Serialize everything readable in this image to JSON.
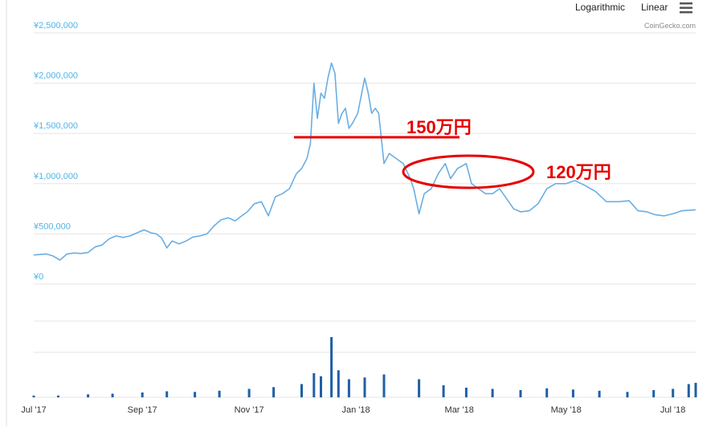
{
  "toolbar": {
    "logarithmic_label": "Logarithmic",
    "linear_label": "Linear",
    "menu_icon": "hamburger-menu-icon"
  },
  "credit": "CoinGecko.com",
  "annotations": {
    "high_label": "150万円",
    "range_label": "120万円",
    "line_color": "#e60000"
  },
  "colors": {
    "price_line": "#6aaee3",
    "volume_bar": "#1f5fa6",
    "grid": "#e6e6e6",
    "axis_label": "#4fb3e6"
  },
  "chart_data": [
    {
      "type": "line",
      "title": "",
      "xlabel": "",
      "ylabel": "",
      "ylim": [
        0,
        2500000
      ],
      "yticks": [
        {
          "value": 0,
          "label": "¥0"
        },
        {
          "value": 500000,
          "label": "¥500,000"
        },
        {
          "value": 1000000,
          "label": "¥1,000,000"
        },
        {
          "value": 1500000,
          "label": "¥1,500,000"
        },
        {
          "value": 2000000,
          "label": "¥2,000,000"
        },
        {
          "value": 2500000,
          "label": "¥2,500,000"
        }
      ],
      "xlim": [
        "2017-07-01",
        "2018-07-14"
      ],
      "xticks": [
        {
          "date": "2017-07-01",
          "label": "Jul '17"
        },
        {
          "date": "2017-09-01",
          "label": "Sep '17"
        },
        {
          "date": "2017-11-01",
          "label": "Nov '17"
        },
        {
          "date": "2018-01-01",
          "label": "Jan '18"
        },
        {
          "date": "2018-03-01",
          "label": "Mar '18"
        },
        {
          "date": "2018-05-01",
          "label": "May '18"
        },
        {
          "date": "2018-07-01",
          "label": "Jul '18"
        }
      ],
      "grid": true,
      "series": [
        {
          "points": [
            [
              "2017-07-01",
              290000
            ],
            [
              "2017-07-08",
              300000
            ],
            [
              "2017-07-12",
              280000
            ],
            [
              "2017-07-16",
              240000
            ],
            [
              "2017-07-20",
              300000
            ],
            [
              "2017-07-24",
              310000
            ],
            [
              "2017-07-28",
              305000
            ],
            [
              "2017-08-01",
              315000
            ],
            [
              "2017-08-05",
              370000
            ],
            [
              "2017-08-09",
              390000
            ],
            [
              "2017-08-13",
              450000
            ],
            [
              "2017-08-17",
              480000
            ],
            [
              "2017-08-21",
              465000
            ],
            [
              "2017-08-25",
              480000
            ],
            [
              "2017-08-29",
              510000
            ],
            [
              "2017-09-02",
              540000
            ],
            [
              "2017-09-06",
              510000
            ],
            [
              "2017-09-09",
              500000
            ],
            [
              "2017-09-12",
              460000
            ],
            [
              "2017-09-15",
              360000
            ],
            [
              "2017-09-18",
              430000
            ],
            [
              "2017-09-22",
              400000
            ],
            [
              "2017-09-26",
              430000
            ],
            [
              "2017-09-30",
              470000
            ],
            [
              "2017-10-04",
              480000
            ],
            [
              "2017-10-08",
              500000
            ],
            [
              "2017-10-12",
              580000
            ],
            [
              "2017-10-16",
              640000
            ],
            [
              "2017-10-20",
              660000
            ],
            [
              "2017-10-24",
              630000
            ],
            [
              "2017-10-27",
              670000
            ],
            [
              "2017-10-31",
              720000
            ],
            [
              "2017-11-04",
              800000
            ],
            [
              "2017-11-08",
              820000
            ],
            [
              "2017-11-12",
              680000
            ],
            [
              "2017-11-16",
              870000
            ],
            [
              "2017-11-20",
              900000
            ],
            [
              "2017-11-24",
              950000
            ],
            [
              "2017-11-28",
              1100000
            ],
            [
              "2017-12-01",
              1150000
            ],
            [
              "2017-12-04",
              1250000
            ],
            [
              "2017-12-06",
              1400000
            ],
            [
              "2017-12-08",
              2000000
            ],
            [
              "2017-12-10",
              1650000
            ],
            [
              "2017-12-12",
              1900000
            ],
            [
              "2017-12-14",
              1850000
            ],
            [
              "2017-12-16",
              2050000
            ],
            [
              "2017-12-18",
              2200000
            ],
            [
              "2017-12-20",
              2100000
            ],
            [
              "2017-12-22",
              1600000
            ],
            [
              "2017-12-24",
              1700000
            ],
            [
              "2017-12-26",
              1750000
            ],
            [
              "2017-12-28",
              1550000
            ],
            [
              "2017-12-30",
              1600000
            ],
            [
              "2018-01-02",
              1700000
            ],
            [
              "2018-01-06",
              2050000
            ],
            [
              "2018-01-08",
              1900000
            ],
            [
              "2018-01-10",
              1700000
            ],
            [
              "2018-01-12",
              1750000
            ],
            [
              "2018-01-14",
              1700000
            ],
            [
              "2018-01-17",
              1200000
            ],
            [
              "2018-01-20",
              1300000
            ],
            [
              "2018-01-24",
              1250000
            ],
            [
              "2018-01-28",
              1200000
            ],
            [
              "2018-02-01",
              1050000
            ],
            [
              "2018-02-03",
              950000
            ],
            [
              "2018-02-06",
              700000
            ],
            [
              "2018-02-09",
              900000
            ],
            [
              "2018-02-13",
              950000
            ],
            [
              "2018-02-17",
              1100000
            ],
            [
              "2018-02-21",
              1200000
            ],
            [
              "2018-02-24",
              1050000
            ],
            [
              "2018-02-28",
              1150000
            ],
            [
              "2018-03-05",
              1200000
            ],
            [
              "2018-03-08",
              1000000
            ],
            [
              "2018-03-12",
              950000
            ],
            [
              "2018-03-16",
              900000
            ],
            [
              "2018-03-20",
              900000
            ],
            [
              "2018-03-24",
              950000
            ],
            [
              "2018-03-28",
              850000
            ],
            [
              "2018-04-01",
              750000
            ],
            [
              "2018-04-05",
              720000
            ],
            [
              "2018-04-10",
              730000
            ],
            [
              "2018-04-15",
              800000
            ],
            [
              "2018-04-20",
              950000
            ],
            [
              "2018-04-25",
              1000000
            ],
            [
              "2018-05-01",
              1000000
            ],
            [
              "2018-05-06",
              1030000
            ],
            [
              "2018-05-12",
              980000
            ],
            [
              "2018-05-18",
              920000
            ],
            [
              "2018-05-24",
              820000
            ],
            [
              "2018-05-31",
              820000
            ],
            [
              "2018-06-06",
              830000
            ],
            [
              "2018-06-11",
              730000
            ],
            [
              "2018-06-16",
              720000
            ],
            [
              "2018-06-21",
              690000
            ],
            [
              "2018-06-26",
              680000
            ],
            [
              "2018-07-01",
              700000
            ],
            [
              "2018-07-06",
              730000
            ],
            [
              "2018-07-14",
              740000
            ]
          ]
        }
      ]
    },
    {
      "type": "bar",
      "title": "",
      "xlabel": "",
      "ylabel": "",
      "ylim": [
        0,
        100
      ],
      "note_units": "relative daily volume",
      "points": [
        [
          "2017-07-01",
          3
        ],
        [
          "2017-07-15",
          3
        ],
        [
          "2017-08-01",
          5
        ],
        [
          "2017-08-15",
          6
        ],
        [
          "2017-09-01",
          8
        ],
        [
          "2017-09-15",
          10
        ],
        [
          "2017-10-01",
          9
        ],
        [
          "2017-10-15",
          11
        ],
        [
          "2017-11-01",
          14
        ],
        [
          "2017-11-15",
          17
        ],
        [
          "2017-12-01",
          22
        ],
        [
          "2017-12-08",
          40
        ],
        [
          "2017-12-12",
          35
        ],
        [
          "2017-12-18",
          100
        ],
        [
          "2017-12-22",
          45
        ],
        [
          "2017-12-28",
          30
        ],
        [
          "2018-01-06",
          33
        ],
        [
          "2018-01-17",
          38
        ],
        [
          "2018-02-06",
          30
        ],
        [
          "2018-02-20",
          20
        ],
        [
          "2018-03-05",
          16
        ],
        [
          "2018-03-20",
          14
        ],
        [
          "2018-04-05",
          12
        ],
        [
          "2018-04-20",
          15
        ],
        [
          "2018-05-05",
          13
        ],
        [
          "2018-05-20",
          11
        ],
        [
          "2018-06-05",
          9
        ],
        [
          "2018-06-20",
          12
        ],
        [
          "2018-07-01",
          14
        ],
        [
          "2018-07-10",
          22
        ],
        [
          "2018-07-14",
          24
        ]
      ]
    }
  ]
}
